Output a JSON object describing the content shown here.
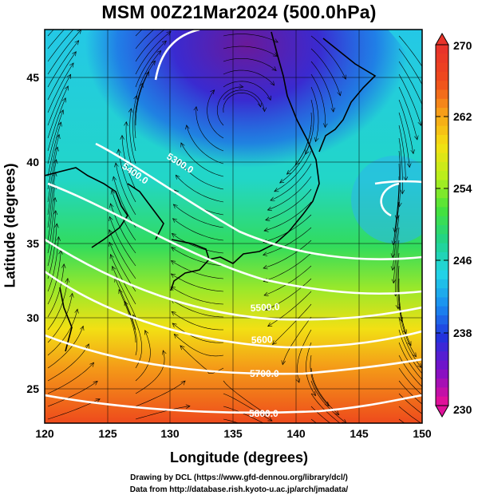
{
  "title": "MSM 00Z21Mar2024 (500.0hPa)",
  "map": {
    "xlabel": "Longitude (degrees)",
    "ylabel": "Latitude  (degrees)",
    "x_ticks": [
      "120",
      "125",
      "130",
      "135",
      "140",
      "145",
      "150"
    ],
    "y_ticks": [
      "45",
      "40",
      "35",
      "30",
      "25"
    ],
    "contour_labels": [
      "5300.0",
      "5400.0",
      "5500.0",
      "5600",
      "5700.0",
      "5800.0"
    ]
  },
  "colorbar": {
    "tick_labels": [
      "270",
      "262",
      "254",
      "246",
      "238",
      "230"
    ],
    "colors": [
      "#e0109a",
      "#7a10c8",
      "#2233dd",
      "#1a8ef0",
      "#22d6e6",
      "#21d38a",
      "#46e23a",
      "#b8ef1c",
      "#f5e012",
      "#f7a018",
      "#ef4a1c",
      "#e8342a"
    ]
  },
  "credits": {
    "line1": "Drawing by DCL (https://www.gfd-dennou.org/library/dcl/)",
    "line2": "Data from http://database.rish.kyoto-u.ac.jp/arch/jmadata/"
  }
}
